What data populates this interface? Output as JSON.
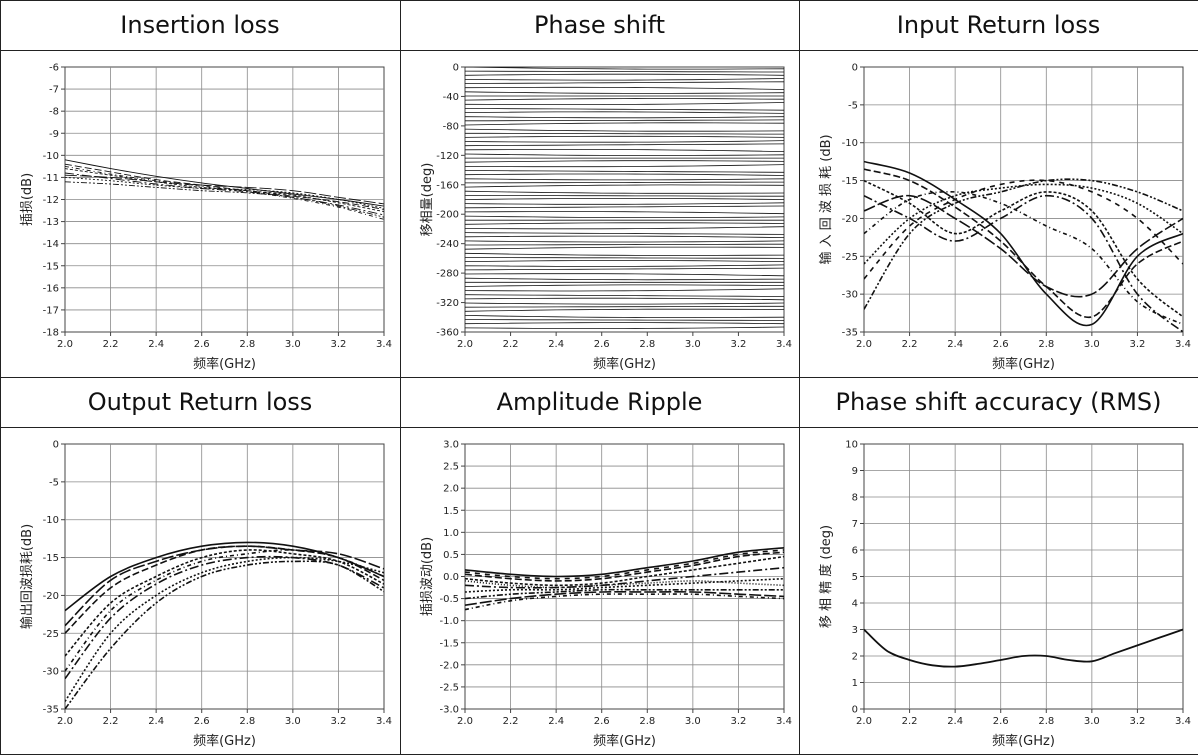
{
  "chart_data": [
    {
      "type": "line",
      "title": "Insertion loss",
      "xlabel": "频率(GHz)",
      "ylabel": "插损(dB)",
      "xlim": [
        2.0,
        3.4
      ],
      "ylim": [
        -18,
        -6
      ],
      "xticks": [
        "2.0",
        "2.2",
        "2.4",
        "2.6",
        "2.8",
        "3.0",
        "3.2",
        "3.4"
      ],
      "yticks": [
        "-6",
        "-7",
        "-8",
        "-9",
        "-10",
        "-11",
        "-12",
        "-13",
        "-14",
        "-15",
        "-16",
        "-17",
        "-18"
      ],
      "grid": true,
      "x": [
        2.0,
        2.2,
        2.4,
        2.6,
        2.8,
        3.0,
        3.2,
        3.4
      ],
      "series": [
        {
          "values": [
            -10.2,
            -10.6,
            -10.95,
            -11.25,
            -11.5,
            -11.75,
            -12.0,
            -12.3
          ]
        },
        {
          "values": [
            -10.4,
            -10.75,
            -11.1,
            -11.35,
            -11.6,
            -11.85,
            -12.1,
            -12.45
          ]
        },
        {
          "values": [
            -10.6,
            -10.9,
            -11.2,
            -11.45,
            -11.6,
            -11.8,
            -12.15,
            -12.55
          ]
        },
        {
          "values": [
            -10.8,
            -11.05,
            -11.3,
            -11.5,
            -11.65,
            -11.9,
            -12.25,
            -12.7
          ]
        },
        {
          "values": [
            -11.0,
            -11.15,
            -11.35,
            -11.5,
            -11.55,
            -11.7,
            -12.0,
            -12.4
          ]
        },
        {
          "values": [
            -11.2,
            -11.3,
            -11.45,
            -11.6,
            -11.7,
            -11.9,
            -12.3,
            -12.8
          ]
        },
        {
          "values": [
            -10.9,
            -11.0,
            -11.2,
            -11.35,
            -11.45,
            -11.6,
            -11.9,
            -12.2
          ]
        },
        {
          "values": [
            -10.5,
            -10.85,
            -11.15,
            -11.4,
            -11.65,
            -11.95,
            -12.35,
            -12.9
          ]
        }
      ]
    },
    {
      "type": "line",
      "title": "Phase shift",
      "xlabel": "频率(GHz)",
      "ylabel": "移相量(deg)",
      "xlim": [
        2.0,
        3.4
      ],
      "ylim": [
        -360,
        0
      ],
      "xticks": [
        "2.0",
        "2.2",
        "2.4",
        "2.6",
        "2.8",
        "3.0",
        "3.2",
        "3.4"
      ],
      "yticks": [
        "0",
        "-40",
        "-80",
        "-120",
        "-160",
        "-200",
        "-240",
        "-280",
        "-320",
        "-360"
      ],
      "grid": false,
      "x": [
        2.0,
        3.4
      ],
      "states_step_deg": 5.625,
      "state_count": 64
    },
    {
      "type": "line",
      "title": "Input Return loss",
      "xlabel": "频率(GHz)",
      "ylabel": "输 入 回 波 损 耗 (dB)",
      "xlim": [
        2.0,
        3.4
      ],
      "ylim": [
        -35,
        0
      ],
      "xticks": [
        "2.0",
        "2.2",
        "2.4",
        "2.6",
        "2.8",
        "3.0",
        "3.2",
        "3.4"
      ],
      "yticks": [
        "0",
        "-5",
        "-10",
        "-15",
        "-20",
        "-25",
        "-30",
        "-35"
      ],
      "grid": true,
      "x": [
        2.0,
        2.2,
        2.4,
        2.6,
        2.8,
        3.0,
        3.2,
        3.4
      ],
      "series": [
        {
          "values": [
            -12.5,
            -14.0,
            -17.5,
            -22.0,
            -30.0,
            -34.0,
            -25.0,
            -22.0
          ]
        },
        {
          "values": [
            -13.5,
            -15.0,
            -18.5,
            -23.0,
            -29.0,
            -33.0,
            -26.0,
            -23.0
          ]
        },
        {
          "values": [
            -15.0,
            -18.0,
            -22.0,
            -19.0,
            -16.5,
            -19.0,
            -28.0,
            -33.0
          ]
        },
        {
          "values": [
            -17.0,
            -20.0,
            -23.0,
            -20.0,
            -17.0,
            -20.0,
            -30.0,
            -35.0
          ]
        },
        {
          "values": [
            -26.0,
            -20.0,
            -17.0,
            -16.0,
            -15.5,
            -16.0,
            -18.0,
            -22.0
          ]
        },
        {
          "values": [
            -32.0,
            -22.0,
            -18.0,
            -16.5,
            -15.0,
            -15.0,
            -16.5,
            -19.0
          ]
        },
        {
          "values": [
            -19.0,
            -17.0,
            -20.0,
            -24.0,
            -29.0,
            -30.0,
            -24.0,
            -20.0
          ]
        },
        {
          "values": [
            -22.0,
            -17.5,
            -16.5,
            -18.0,
            -21.0,
            -24.0,
            -31.0,
            -34.0
          ]
        },
        {
          "values": [
            -28.0,
            -21.0,
            -17.5,
            -15.5,
            -15.0,
            -16.5,
            -20.0,
            -26.0
          ]
        }
      ]
    },
    {
      "type": "line",
      "title": "Output Return loss",
      "xlabel": "频率(GHz)",
      "ylabel": "输出回波损耗(dB)",
      "xlim": [
        2.0,
        3.4
      ],
      "ylim": [
        -35,
        0
      ],
      "xticks": [
        "2.0",
        "2.2",
        "2.4",
        "2.6",
        "2.8",
        "3.0",
        "3.2",
        "3.4"
      ],
      "yticks": [
        "0",
        "-5",
        "-10",
        "-15",
        "-20",
        "-25",
        "-30",
        "-35"
      ],
      "grid": true,
      "x": [
        2.0,
        2.2,
        2.4,
        2.6,
        2.8,
        3.0,
        3.2,
        3.4
      ],
      "series": [
        {
          "values": [
            -22.0,
            -17.5,
            -15.0,
            -13.5,
            -13.0,
            -13.5,
            -15.0,
            -17.5
          ]
        },
        {
          "values": [
            -25.0,
            -19.0,
            -16.0,
            -14.0,
            -13.5,
            -14.0,
            -15.0,
            -18.0
          ]
        },
        {
          "values": [
            -28.0,
            -21.0,
            -17.5,
            -15.0,
            -14.0,
            -14.5,
            -15.5,
            -18.5
          ]
        },
        {
          "values": [
            -31.0,
            -23.0,
            -18.5,
            -16.0,
            -15.0,
            -15.0,
            -16.0,
            -19.0
          ]
        },
        {
          "values": [
            -34.0,
            -25.0,
            -20.0,
            -17.0,
            -15.5,
            -15.0,
            -15.5,
            -17.0
          ]
        },
        {
          "values": [
            -35.0,
            -27.0,
            -21.0,
            -17.5,
            -16.0,
            -15.5,
            -16.0,
            -19.5
          ]
        },
        {
          "values": [
            -24.0,
            -18.0,
            -15.5,
            -14.0,
            -13.5,
            -14.0,
            -14.5,
            -16.5
          ]
        },
        {
          "values": [
            -30.0,
            -22.0,
            -18.0,
            -15.5,
            -14.5,
            -14.0,
            -15.0,
            -17.5
          ]
        }
      ]
    },
    {
      "type": "line",
      "title": "Amplitude Ripple",
      "xlabel": "频率(GHz)",
      "ylabel": "插损波动(dB)",
      "xlim": [
        2.0,
        3.4
      ],
      "ylim": [
        -3.0,
        3.0
      ],
      "xticks": [
        "2.0",
        "2.2",
        "2.4",
        "2.6",
        "2.8",
        "3.0",
        "3.2",
        "3.4"
      ],
      "yticks": [
        "3.0",
        "2.5",
        "2.0",
        "1.5",
        "1.0",
        "0.5",
        "0.0",
        "-0.5",
        "-1.0",
        "-1.5",
        "-2.0",
        "-2.5",
        "-3.0"
      ],
      "grid": true,
      "x": [
        2.0,
        2.2,
        2.4,
        2.6,
        2.8,
        3.0,
        3.2,
        3.4
      ],
      "series": [
        {
          "values": [
            0.15,
            0.05,
            0.0,
            0.05,
            0.2,
            0.35,
            0.55,
            0.65
          ]
        },
        {
          "values": [
            0.05,
            -0.05,
            -0.1,
            -0.05,
            0.1,
            0.25,
            0.45,
            0.55
          ]
        },
        {
          "values": [
            -0.05,
            -0.15,
            -0.2,
            -0.15,
            0.0,
            0.15,
            0.3,
            0.45
          ]
        },
        {
          "values": [
            -0.2,
            -0.25,
            -0.25,
            -0.2,
            -0.1,
            0.0,
            0.1,
            0.2
          ]
        },
        {
          "values": [
            -0.35,
            -0.3,
            -0.3,
            -0.25,
            -0.2,
            -0.15,
            -0.1,
            -0.05
          ]
        },
        {
          "values": [
            -0.5,
            -0.4,
            -0.35,
            -0.3,
            -0.3,
            -0.3,
            -0.3,
            -0.3
          ]
        },
        {
          "values": [
            -0.65,
            -0.5,
            -0.4,
            -0.35,
            -0.35,
            -0.35,
            -0.4,
            -0.45
          ]
        },
        {
          "values": [
            -0.75,
            -0.55,
            -0.45,
            -0.4,
            -0.4,
            -0.4,
            -0.45,
            -0.5
          ]
        },
        {
          "values": [
            0.1,
            0.0,
            -0.05,
            0.0,
            0.15,
            0.3,
            0.5,
            0.6
          ]
        },
        {
          "values": [
            -0.1,
            -0.2,
            -0.25,
            -0.2,
            -0.15,
            -0.1,
            -0.15,
            -0.2
          ]
        }
      ]
    },
    {
      "type": "line",
      "title": "Phase shift accuracy (RMS)",
      "xlabel": "频率(GHz)",
      "ylabel": "移 相 精 度 (deg)",
      "xlim": [
        2.0,
        3.4
      ],
      "ylim": [
        0,
        10
      ],
      "xticks": [
        "2.0",
        "2.2",
        "2.4",
        "2.6",
        "2.8",
        "3.0",
        "3.2",
        "3.4"
      ],
      "yticks": [
        "10",
        "9",
        "8",
        "7",
        "6",
        "5",
        "4",
        "3",
        "2",
        "1",
        "0"
      ],
      "grid": true,
      "x": [
        2.0,
        2.1,
        2.2,
        2.3,
        2.4,
        2.5,
        2.6,
        2.7,
        2.8,
        2.9,
        3.0,
        3.1,
        3.2,
        3.3,
        3.4
      ],
      "series": [
        {
          "values": [
            3.0,
            2.2,
            1.85,
            1.65,
            1.6,
            1.7,
            1.85,
            2.0,
            2.0,
            1.85,
            1.8,
            2.1,
            2.4,
            2.7,
            3.0
          ]
        }
      ]
    }
  ]
}
